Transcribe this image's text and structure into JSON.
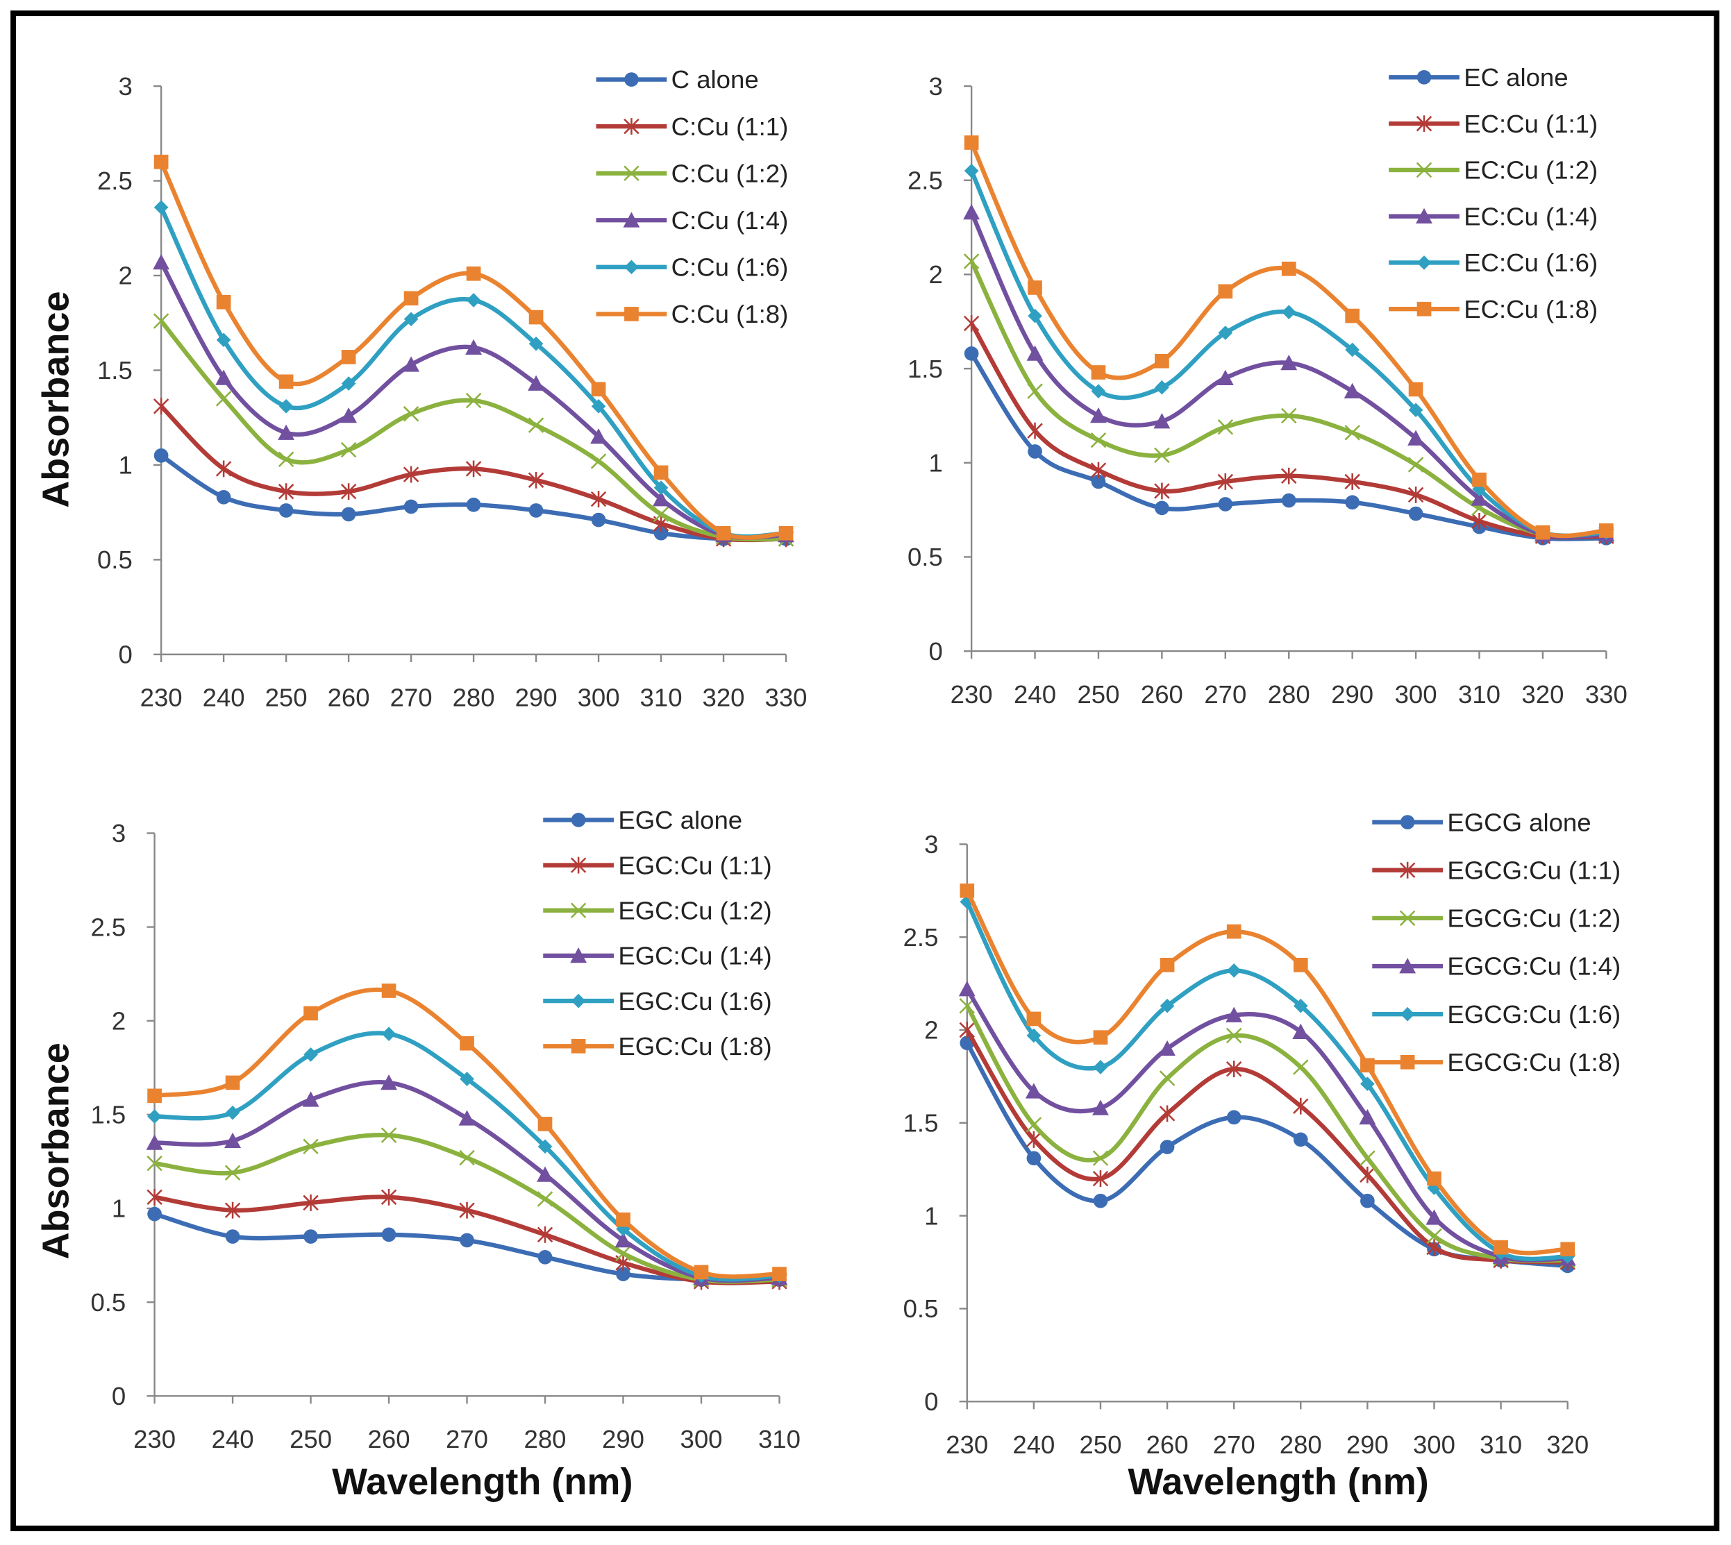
{
  "axis_titles": {
    "y": "Absorbance",
    "x": "Wavelength (nm)"
  },
  "series_colors": [
    "#3C6DB4",
    "#B33B37",
    "#8BB23F",
    "#7250A0",
    "#2FA0C2",
    "#EA8330"
  ],
  "series_markers": [
    "circle",
    "asterisk",
    "x",
    "triangle",
    "diamond",
    "square"
  ],
  "chart_data": [
    {
      "type": "line",
      "title": "",
      "xlabel": "",
      "ylabel": "Absorbance",
      "x": [
        230,
        240,
        250,
        260,
        270,
        280,
        290,
        300,
        310,
        320,
        330
      ],
      "ylim": [
        0,
        3
      ],
      "yticks": [
        "0",
        "0.5",
        "1",
        "1.5",
        "2",
        "2.5",
        "3"
      ],
      "legend_position": "top-right",
      "series": [
        {
          "name": "C alone",
          "values": [
            1.05,
            0.83,
            0.76,
            0.74,
            0.78,
            0.79,
            0.76,
            0.71,
            0.64,
            0.61,
            0.61
          ]
        },
        {
          "name": "C:Cu (1:1)",
          "values": [
            1.31,
            0.98,
            0.86,
            0.86,
            0.95,
            0.98,
            0.92,
            0.82,
            0.69,
            0.61,
            0.61
          ]
        },
        {
          "name": "C:Cu (1:2)",
          "values": [
            1.76,
            1.35,
            1.03,
            1.08,
            1.27,
            1.34,
            1.21,
            1.02,
            0.74,
            0.62,
            0.61
          ]
        },
        {
          "name": "C:Cu (1:4)",
          "values": [
            2.07,
            1.46,
            1.17,
            1.26,
            1.53,
            1.62,
            1.43,
            1.15,
            0.82,
            0.63,
            0.63
          ]
        },
        {
          "name": "C:Cu (1:6)",
          "values": [
            2.36,
            1.66,
            1.31,
            1.43,
            1.77,
            1.87,
            1.64,
            1.31,
            0.88,
            0.64,
            0.64
          ]
        },
        {
          "name": "C:Cu (1:8)",
          "values": [
            2.6,
            1.86,
            1.44,
            1.57,
            1.88,
            2.01,
            1.78,
            1.4,
            0.96,
            0.64,
            0.64
          ]
        }
      ]
    },
    {
      "type": "line",
      "title": "",
      "xlabel": "",
      "ylabel": "",
      "x": [
        230,
        240,
        250,
        260,
        270,
        280,
        290,
        300,
        310,
        320,
        330
      ],
      "ylim": [
        0,
        3
      ],
      "yticks": [
        "0",
        "0.5",
        "1",
        "1.5",
        "2",
        "2.5",
        "3"
      ],
      "legend_position": "top-right",
      "series": [
        {
          "name": "EC alone",
          "values": [
            1.58,
            1.06,
            0.9,
            0.76,
            0.78,
            0.8,
            0.79,
            0.73,
            0.66,
            0.6,
            0.6
          ]
        },
        {
          "name": "EC:Cu (1:1)",
          "values": [
            1.74,
            1.17,
            0.96,
            0.85,
            0.9,
            0.93,
            0.9,
            0.83,
            0.69,
            0.61,
            0.61
          ]
        },
        {
          "name": "EC:Cu (1:2)",
          "values": [
            2.07,
            1.38,
            1.12,
            1.04,
            1.19,
            1.25,
            1.16,
            0.99,
            0.76,
            0.62,
            0.62
          ]
        },
        {
          "name": "EC:Cu (1:4)",
          "values": [
            2.33,
            1.58,
            1.25,
            1.22,
            1.45,
            1.53,
            1.38,
            1.13,
            0.81,
            0.62,
            0.62
          ]
        },
        {
          "name": "EC:Cu (1:6)",
          "values": [
            2.55,
            1.78,
            1.38,
            1.4,
            1.69,
            1.8,
            1.6,
            1.28,
            0.86,
            0.63,
            0.63
          ]
        },
        {
          "name": "EC:Cu (1:8)",
          "values": [
            2.7,
            1.93,
            1.48,
            1.54,
            1.91,
            2.03,
            1.78,
            1.39,
            0.91,
            0.63,
            0.64
          ]
        }
      ]
    },
    {
      "type": "line",
      "title": "",
      "xlabel": "Wavelength (nm)",
      "ylabel": "Absorbance",
      "x": [
        230,
        240,
        250,
        260,
        270,
        280,
        290,
        300,
        310
      ],
      "ylim": [
        0,
        3
      ],
      "yticks": [
        "0",
        "0.5",
        "1",
        "1.5",
        "2",
        "2.5",
        "3"
      ],
      "legend_position": "top-right",
      "series": [
        {
          "name": "EGC alone",
          "values": [
            0.97,
            0.85,
            0.85,
            0.86,
            0.83,
            0.74,
            0.65,
            0.62,
            0.62
          ]
        },
        {
          "name": "EGC:Cu (1:1)",
          "values": [
            1.06,
            0.99,
            1.03,
            1.06,
            0.99,
            0.86,
            0.71,
            0.61,
            0.61
          ]
        },
        {
          "name": "EGC:Cu (1:2)",
          "values": [
            1.24,
            1.19,
            1.33,
            1.39,
            1.27,
            1.05,
            0.76,
            0.62,
            0.62
          ]
        },
        {
          "name": "EGC:Cu (1:4)",
          "values": [
            1.35,
            1.36,
            1.58,
            1.67,
            1.48,
            1.18,
            0.83,
            0.63,
            0.63
          ]
        },
        {
          "name": "EGC:Cu (1:6)",
          "values": [
            1.49,
            1.51,
            1.82,
            1.93,
            1.69,
            1.33,
            0.89,
            0.64,
            0.64
          ]
        },
        {
          "name": "EGC:Cu (1:8)",
          "values": [
            1.6,
            1.67,
            2.04,
            2.16,
            1.88,
            1.45,
            0.94,
            0.66,
            0.65
          ]
        }
      ]
    },
    {
      "type": "line",
      "title": "",
      "xlabel": "Wavelength (nm)",
      "ylabel": "",
      "x": [
        230,
        240,
        250,
        260,
        270,
        280,
        290,
        300,
        310,
        320
      ],
      "ylim": [
        0,
        3
      ],
      "yticks": [
        "0",
        "0.5",
        "1",
        "1.5",
        "2",
        "2.5",
        "3"
      ],
      "legend_position": "top-right",
      "series": [
        {
          "name": "EGCG alone",
          "values": [
            1.93,
            1.31,
            1.08,
            1.37,
            1.53,
            1.41,
            1.08,
            0.82,
            0.76,
            0.73
          ]
        },
        {
          "name": "EGCG:Cu (1:1)",
          "values": [
            2.0,
            1.41,
            1.2,
            1.55,
            1.79,
            1.59,
            1.22,
            0.83,
            0.76,
            0.75
          ]
        },
        {
          "name": "EGCG:Cu (1:2)",
          "values": [
            2.13,
            1.49,
            1.31,
            1.74,
            1.97,
            1.8,
            1.31,
            0.89,
            0.77,
            0.76
          ]
        },
        {
          "name": "EGCG:Cu (1:4)",
          "values": [
            2.22,
            1.67,
            1.58,
            1.9,
            2.08,
            1.99,
            1.53,
            0.99,
            0.78,
            0.77
          ]
        },
        {
          "name": "EGCG:Cu (1:6)",
          "values": [
            2.69,
            1.97,
            1.8,
            2.13,
            2.32,
            2.13,
            1.71,
            1.15,
            0.8,
            0.78
          ]
        },
        {
          "name": "EGCG:Cu (1:8)",
          "values": [
            2.75,
            2.06,
            1.96,
            2.35,
            2.53,
            2.35,
            1.81,
            1.2,
            0.83,
            0.82
          ]
        }
      ]
    }
  ]
}
